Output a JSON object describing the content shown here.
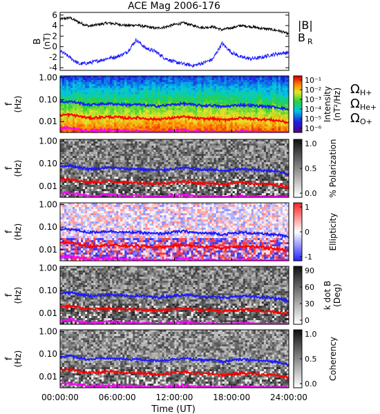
{
  "title": "ACE Mag 2006-176",
  "colors": {
    "total_field": "#000000",
    "radial_field": "#1a1aff",
    "h_plus": "#1a1aff",
    "he_plus": "#ff0000",
    "o_plus": "#ff00ff"
  },
  "chart_data": [
    {
      "type": "line",
      "panel": "magnetic-field",
      "ylabel": "B",
      "ylabel_unit": "(nT)",
      "ylim": [
        -4.5,
        6.5
      ],
      "yticks": [
        "6",
        "4",
        "2",
        "0",
        "-2",
        "-4"
      ],
      "xlim": [
        "00:00:00",
        "24:00:00"
      ],
      "series": [
        {
          "name": "|B|",
          "x_hours": [
            0,
            1,
            2,
            3,
            4,
            5,
            6,
            7,
            8,
            9,
            10,
            11,
            12,
            13,
            14,
            15,
            16,
            17,
            18,
            19,
            20,
            21,
            22,
            23,
            24
          ],
          "values": [
            5.2,
            5.5,
            4.6,
            3.9,
            4.2,
            4.5,
            4.3,
            4.0,
            4.1,
            3.8,
            3.5,
            3.7,
            4.2,
            4.5,
            4.0,
            3.6,
            3.8,
            3.2,
            3.6,
            4.0,
            3.8,
            3.5,
            3.3,
            3.0,
            2.4
          ]
        },
        {
          "name": "B",
          "subscript": "R",
          "x_hours": [
            0,
            1,
            2,
            3,
            4,
            5,
            6,
            7,
            8,
            9,
            10,
            11,
            12,
            13,
            14,
            15,
            16,
            17,
            18,
            19,
            20,
            21,
            22,
            23,
            24
          ],
          "values": [
            -0.8,
            -2.0,
            -3.3,
            -3.1,
            -2.7,
            -2.2,
            -1.9,
            -1.1,
            1.3,
            -0.3,
            -0.9,
            -2.2,
            -2.9,
            -3.3,
            -3.6,
            -3.1,
            -2.4,
            0.6,
            -1.1,
            -2.0,
            -2.3,
            -2.1,
            -1.6,
            -1.3,
            -1.1
          ]
        }
      ]
    },
    {
      "type": "heatmap",
      "panel": "intensity",
      "ylabel": "f",
      "ylabel_unit": "(Hz)",
      "yticks": [
        "1.00",
        "0.10",
        "0.01"
      ],
      "colorbar_label": "Intensity",
      "colorbar_unit": "(nT²/Hz)",
      "colorbar_ticks": [
        "10⁻¹",
        "10⁻²",
        "10⁻³",
        "10⁻⁴",
        "10⁻⁵",
        "10⁻⁶"
      ],
      "colormap": "rainbow"
    },
    {
      "type": "heatmap",
      "panel": "polarization",
      "ylabel": "f",
      "ylabel_unit": "(Hz)",
      "yticks": [
        "1.00",
        "0.10",
        "0.01"
      ],
      "colorbar_label": "% Polarization",
      "colorbar_ticks": [
        "1.0",
        "0.5",
        "0.0"
      ],
      "colormap": "gray"
    },
    {
      "type": "heatmap",
      "panel": "ellipticity",
      "ylabel": "f",
      "ylabel_unit": "(Hz)",
      "yticks": [
        "1.00",
        "0.10",
        "0.01"
      ],
      "colorbar_label": "Ellipticity",
      "colorbar_ticks": [
        "1",
        "0",
        "-1"
      ],
      "colormap": "blue-white-red"
    },
    {
      "type": "heatmap",
      "panel": "wave-normal",
      "ylabel": "f",
      "ylabel_unit": "(Hz)",
      "yticks": [
        "1.00",
        "0.10",
        "0.01"
      ],
      "colorbar_label": "k dot B",
      "colorbar_unit": "(Deg)",
      "colorbar_ticks": [
        "90",
        "60",
        "30",
        "0"
      ],
      "colormap": "gray"
    },
    {
      "type": "heatmap",
      "panel": "coherency",
      "ylabel": "f",
      "ylabel_unit": "(Hz)",
      "yticks": [
        "1.00",
        "0.10",
        "0.01"
      ],
      "colorbar_label": "Coherency",
      "colorbar_ticks": [
        "1.0",
        "0.5",
        "0.0"
      ],
      "colormap": "gray"
    },
    {
      "type": "line",
      "panel": "gyrofrequencies",
      "legend": "right of intensity panel",
      "series": [
        {
          "name": "Ω",
          "subscript": "H+",
          "x_hours": [
            0,
            1,
            2,
            3,
            4,
            5,
            6,
            7,
            8,
            9,
            10,
            11,
            12,
            13,
            14,
            15,
            16,
            17,
            18,
            19,
            20,
            21,
            22,
            23,
            24
          ],
          "values": [
            0.078,
            0.083,
            0.07,
            0.058,
            0.062,
            0.066,
            0.063,
            0.058,
            0.06,
            0.055,
            0.051,
            0.054,
            0.061,
            0.066,
            0.058,
            0.053,
            0.055,
            0.047,
            0.053,
            0.058,
            0.055,
            0.051,
            0.048,
            0.044,
            0.035
          ]
        },
        {
          "name": "Ω",
          "subscript": "He+",
          "x_hours": [
            0,
            1,
            2,
            3,
            4,
            5,
            6,
            7,
            8,
            9,
            10,
            11,
            12,
            13,
            14,
            15,
            16,
            17,
            18,
            19,
            20,
            21,
            22,
            23,
            24
          ],
          "values": [
            0.0195,
            0.0208,
            0.0175,
            0.0145,
            0.0155,
            0.0165,
            0.0158,
            0.0145,
            0.015,
            0.0138,
            0.0128,
            0.0135,
            0.0153,
            0.0165,
            0.0145,
            0.0133,
            0.0138,
            0.0118,
            0.0133,
            0.0145,
            0.0138,
            0.0128,
            0.012,
            0.011,
            0.0088
          ]
        },
        {
          "name": "Ω",
          "subscript": "O+",
          "x_hours": [
            0,
            1,
            2,
            3,
            4,
            5,
            6,
            7,
            8,
            9,
            10,
            11,
            12,
            13,
            14,
            15,
            16,
            17,
            18,
            19,
            20,
            21,
            22,
            23,
            24
          ],
          "values": [
            0.0049,
            0.0052,
            0.0044,
            0.0036,
            0.0039,
            0.0041,
            0.004,
            0.0036,
            0.0038,
            0.0035,
            0.0032,
            0.0034,
            0.0038,
            0.0041,
            0.0036,
            0.0033,
            0.0035,
            0.003,
            0.0033,
            0.0036,
            0.0035,
            0.0032,
            0.003,
            0.0028,
            0.0022
          ]
        }
      ]
    }
  ],
  "x_axis": {
    "label": "Time (UT)",
    "ticks": [
      "00:00:00",
      "06:00:00",
      "12:00:00",
      "18:00:00",
      "24:00:00"
    ]
  }
}
